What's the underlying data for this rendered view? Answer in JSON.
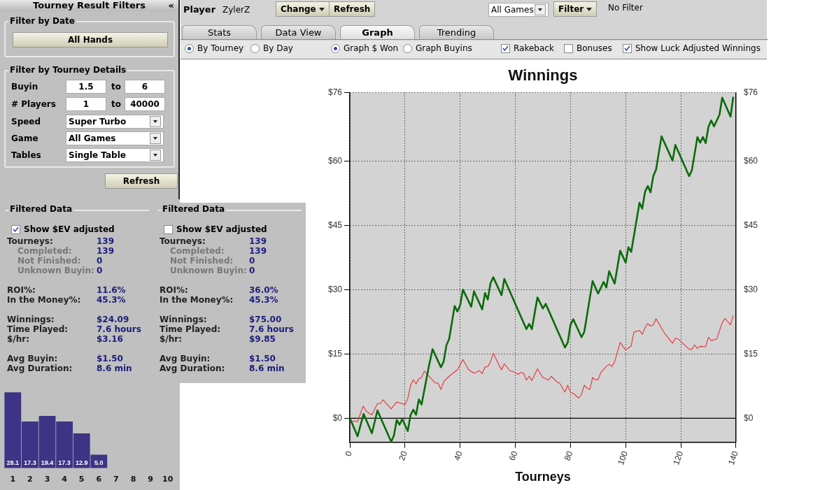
{
  "chart_data": [
    {
      "type": "other",
      "title": "Tourney Result Filters",
      "annotations": [
        "«",
        "Filter by Date",
        "All Hands",
        "Filter by Tourney Details",
        "Buyin",
        "1.5",
        "to",
        "6",
        "# Players",
        "1",
        "to",
        "40000",
        "Speed",
        "Super Turbo",
        "Game",
        "All Games",
        "Tables",
        "Single Table",
        "Refresh"
      ]
    },
    {
      "type": "other",
      "annotations": [
        "Player",
        "ZylerZ",
        "Change",
        "Refresh",
        "All Games",
        "Filter",
        "No Filter",
        "Stats",
        "Data View",
        "Graph",
        "Trending",
        "By Tourney",
        "By Day",
        "Graph $ Won",
        "Graph Buyins",
        "Rakeback",
        "Bonuses",
        "Show Luck Adjusted Winnings"
      ]
    },
    {
      "type": "other",
      "title": "Filtered Data",
      "annotations": [
        "Show $EV adjusted",
        "Tourneys:",
        "139",
        "Completed:",
        "139",
        "Not Finished:",
        "0",
        "Unknown Buyin:",
        "0",
        "ROI%:",
        "11.6%",
        "In the Money%:",
        "45.3%",
        "Winnings:",
        "$24.09",
        "Time Played:",
        "7.6 hours",
        "$/hr:",
        "$3.16",
        "Avg Buyin:",
        "$1.50",
        "Avg Duration:",
        "8.6 min"
      ]
    },
    {
      "type": "other",
      "title": "Filtered Data",
      "annotations": [
        "Show $EV adjusted",
        "Tourneys:",
        "139",
        "Completed:",
        "139",
        "Not Finished:",
        "0",
        "Unknown Buyin:",
        "0",
        "ROI%:",
        "36.0%",
        "In the Money%:",
        "45.3%",
        "Winnings:",
        "$75.00",
        "Time Played:",
        "7.6 hours",
        "$/hr:",
        "$9.85",
        "Avg Buyin:",
        "$1.50",
        "Avg Duration:",
        "8.6 min"
      ]
    },
    {
      "type": "bar",
      "categories": [
        "1",
        "2",
        "3",
        "4",
        "5",
        "6",
        "7",
        "8",
        "9",
        "10"
      ],
      "values": [
        28.1,
        17.3,
        19.4,
        17.3,
        12.9,
        5.0,
        null,
        null,
        null,
        null
      ],
      "value_labels": [
        "28.1",
        "17.3",
        "19.4",
        "17.3",
        "12.9",
        "5.0",
        null,
        null,
        null,
        null
      ],
      "color": "#3d3485"
    },
    {
      "type": "line",
      "title": "Winnings",
      "xlabel": "Tourneys",
      "xlim": [
        0,
        140
      ],
      "xticks": [
        0,
        20,
        40,
        60,
        80,
        100,
        120,
        140
      ],
      "ylim": [
        -5.6,
        76
      ],
      "yticks": [
        {
          "value": 0,
          "label": "$0"
        },
        {
          "value": 15,
          "label": "$15"
        },
        {
          "value": 30,
          "label": "$30"
        },
        {
          "value": 45,
          "label": "$45"
        },
        {
          "value": 60,
          "label": "$60"
        },
        {
          "value": 76,
          "label": "$76"
        }
      ],
      "y2lim": [
        -5.6,
        76
      ],
      "y2ticks": [
        {
          "value": 0,
          "label": "$0"
        },
        {
          "value": 15,
          "label": "$15"
        },
        {
          "value": 30,
          "label": "$30"
        },
        {
          "value": 45,
          "label": "$45"
        },
        {
          "value": 60,
          "label": "$60"
        },
        {
          "value": 76,
          "label": "$76"
        }
      ],
      "grid": true,
      "ref_lines": [
        {
          "axis": "y",
          "value": 0,
          "color": "#000000"
        }
      ],
      "series": [
        {
          "color": "#0b6b0b",
          "x": [
            0,
            2.8,
            5,
            8,
            10,
            15,
            16,
            17,
            18,
            19,
            21,
            22,
            23,
            24,
            25,
            26,
            28.7,
            30,
            33,
            34,
            35,
            36,
            38,
            39,
            40,
            41,
            44,
            45,
            48,
            49,
            50,
            51,
            52,
            55,
            56,
            64,
            65,
            66,
            68,
            70,
            71,
            78,
            79,
            80,
            81,
            84,
            85,
            88,
            90,
            92,
            93,
            94,
            96,
            98,
            100,
            101,
            102,
            105,
            106,
            107,
            108,
            109,
            110,
            111,
            113,
            117,
            118,
            123,
            124,
            126,
            127,
            128,
            129,
            130,
            131,
            132,
            134,
            135,
            138,
            139
          ],
          "values": [
            0,
            -4.2,
            1,
            -3.5,
            1.8,
            -5.5,
            -4,
            -0.4,
            -1.5,
            -0.2,
            -3,
            0.7,
            2,
            0.8,
            4.4,
            3.2,
            12.3,
            16.1,
            11.9,
            13.2,
            17,
            18.5,
            26.2,
            24.9,
            26.4,
            30,
            26,
            29.6,
            25.4,
            29.2,
            27.7,
            31.5,
            32.9,
            28.7,
            32.5,
            20.8,
            22,
            20.8,
            28.2,
            25.6,
            26.7,
            16.5,
            17.7,
            21.8,
            23.1,
            18.9,
            20.2,
            32,
            29.1,
            31.8,
            30.5,
            34.3,
            31.4,
            39.1,
            36.3,
            39.9,
            38.8,
            50.3,
            48.9,
            52.8,
            54.2,
            52.7,
            56.5,
            58,
            65.8,
            60.1,
            63.8,
            56.5,
            57.9,
            65.6,
            64.3,
            65.6,
            64.2,
            68,
            69.5,
            68.1,
            70.8,
            74.8,
            70.4,
            75
          ]
        },
        {
          "color": "#e8323a",
          "x": [
            0,
            1.6,
            2.8,
            4.8,
            6,
            8,
            10,
            11,
            12,
            15,
            17,
            20,
            21,
            22,
            23,
            24,
            25,
            26,
            27,
            31,
            32,
            33,
            34,
            36,
            39,
            41,
            43,
            45,
            47,
            48,
            49,
            50,
            51,
            52,
            54,
            55,
            56,
            58,
            60,
            61,
            62,
            63,
            64,
            65,
            66,
            68,
            70,
            72,
            73,
            75,
            76,
            78,
            79,
            80,
            81,
            83,
            84,
            85,
            86,
            87,
            88,
            89,
            90,
            91,
            93,
            94,
            95,
            96,
            98,
            100,
            102,
            103,
            105,
            106,
            107,
            108,
            109,
            110,
            111,
            114,
            117,
            118,
            119,
            123,
            124,
            125,
            126,
            127,
            129,
            130,
            131,
            133,
            135,
            136,
            138,
            139
          ],
          "values": [
            -1.2,
            -0.6,
            -0.8,
            2.8,
            1.6,
            0.8,
            3.4,
            3.4,
            4.3,
            2.2,
            3.8,
            3.2,
            4.6,
            7.6,
            9,
            8,
            9.2,
            9.5,
            11,
            8.2,
            8.2,
            6.7,
            8.5,
            9.8,
            11.3,
            13.7,
            11.4,
            10.5,
            11.1,
            10.4,
            12,
            12,
            13.2,
            15.2,
            12.5,
            11.3,
            12.7,
            11.1,
            10.7,
            10.2,
            10.7,
            10.5,
            8.9,
            9.8,
            8.8,
            11.5,
            9.5,
            8.9,
            9.8,
            8.5,
            8.2,
            6.1,
            7.7,
            6,
            5.8,
            4.7,
            5.6,
            7.7,
            7,
            6.7,
            9.5,
            9,
            9,
            10.7,
            12.1,
            12.6,
            12.1,
            13.2,
            17.7,
            15.9,
            16.9,
            20.1,
            20.5,
            19.6,
            21.1,
            22.1,
            21.5,
            21.8,
            23.2,
            19.9,
            17.5,
            18.7,
            18.5,
            16.1,
            16.1,
            17.1,
            16.3,
            16.8,
            16.7,
            18.9,
            18.1,
            18.5,
            22.3,
            23.3,
            21.8,
            24
          ]
        }
      ]
    }
  ]
}
